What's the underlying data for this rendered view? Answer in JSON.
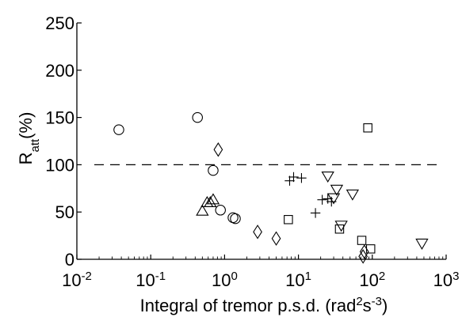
{
  "chart_data": {
    "type": "scatter",
    "title": "",
    "xlabel": {
      "base": "Integral of tremor p.s.d. (rad",
      "sup1": "2",
      "mid": "s",
      "sup2": "-3",
      "end": ")"
    },
    "ylabel": {
      "base": "R",
      "sub": "att",
      "end": "(%)"
    },
    "x_scale": "log",
    "xlim": [
      0.01,
      1000
    ],
    "ylim": [
      0,
      250
    ],
    "x_ticks": [
      {
        "value": 0.01,
        "base": "10",
        "exp": "-2"
      },
      {
        "value": 0.1,
        "base": "10",
        "exp": "-1"
      },
      {
        "value": 1,
        "base": "10",
        "exp": "0"
      },
      {
        "value": 10,
        "base": "10",
        "exp": "1"
      },
      {
        "value": 100,
        "base": "10",
        "exp": "2"
      },
      {
        "value": 1000,
        "base": "10",
        "exp": "3"
      }
    ],
    "y_ticks": [
      0,
      50,
      100,
      150,
      200,
      250
    ],
    "grid": false,
    "legend": "none",
    "reference_line": {
      "y": 100,
      "style": "dashed"
    },
    "series": [
      {
        "marker": "circle",
        "points": [
          [
            0.037,
            137
          ],
          [
            0.43,
            150
          ],
          [
            0.7,
            94
          ],
          [
            0.88,
            52
          ],
          [
            1.3,
            44
          ],
          [
            1.4,
            43
          ]
        ]
      },
      {
        "marker": "triangle-up",
        "points": [
          [
            0.5,
            51
          ],
          [
            0.58,
            60
          ],
          [
            0.64,
            60
          ],
          [
            0.7,
            63
          ]
        ]
      },
      {
        "marker": "diamond",
        "points": [
          [
            0.82,
            116
          ],
          [
            2.8,
            29
          ],
          [
            5.0,
            22
          ],
          [
            78,
            8
          ],
          [
            75,
            3
          ]
        ]
      },
      {
        "marker": "square",
        "points": [
          [
            7.3,
            42
          ],
          [
            36,
            32
          ],
          [
            72,
            20
          ],
          [
            87,
            139
          ],
          [
            95,
            11
          ]
        ]
      },
      {
        "marker": "plus",
        "points": [
          [
            7.6,
            83
          ],
          [
            8.6,
            87
          ],
          [
            11,
            86
          ],
          [
            17,
            49
          ],
          [
            21,
            63
          ],
          [
            25,
            64
          ],
          [
            28,
            61
          ]
        ]
      },
      {
        "marker": "triangle-down",
        "points": [
          [
            25,
            88
          ],
          [
            30,
            65
          ],
          [
            33,
            74
          ],
          [
            38,
            36
          ],
          [
            54,
            69
          ],
          [
            470,
            17
          ]
        ]
      }
    ]
  }
}
